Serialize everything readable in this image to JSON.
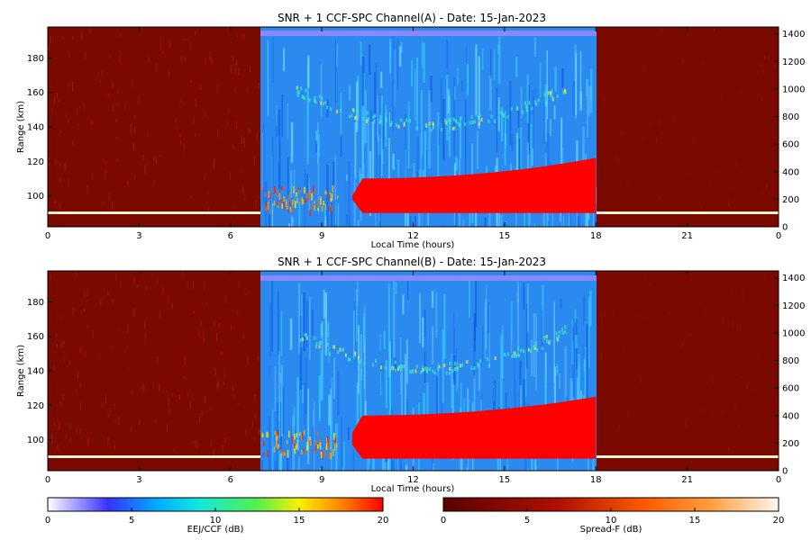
{
  "chart_data": [
    {
      "type": "heatmap",
      "title": "SNR + 1 CCF-SPC Channel(A) - Date: 15-Jan-2023",
      "xlabel": "Local Time (hours)",
      "ylabel": "Range (km)",
      "xlim": [
        0,
        24
      ],
      "ylim": [
        82,
        198
      ],
      "x_ticks": [
        "0",
        "3",
        "6",
        "9",
        "12",
        "15",
        "18",
        "21",
        "0"
      ],
      "y_ticks": [
        "100",
        "120",
        "140",
        "160",
        "180"
      ],
      "y2_ticks": [
        "0",
        "200",
        "400",
        "600",
        "800",
        "1000",
        "1200",
        "1400"
      ],
      "y2lim": [
        0,
        1450
      ],
      "colormap_eej": "EEJ/CCF",
      "colormap_night": "Spread-F",
      "eej_window_hours": [
        7,
        18
      ],
      "regions": [
        {
          "name": "night-spread-f",
          "x_range": [
            0,
            7
          ],
          "colormap": "heat"
        },
        {
          "name": "daytime-eej-ccf",
          "x_range": [
            7,
            18
          ],
          "colormap": "jet"
        },
        {
          "name": "night-spread-f",
          "x_range": [
            18,
            24
          ],
          "colormap": "heat"
        }
      ],
      "features": [
        {
          "type": "strong-echo-layer",
          "x_range": [
            10,
            18
          ],
          "lower_km": 90,
          "upper_km_start": 110,
          "upper_km_end": 122
        },
        {
          "type": "bright-band",
          "range_km": 90
        }
      ]
    },
    {
      "type": "heatmap",
      "title": "SNR + 1 CCF-SPC Channel(B) - Date: 15-Jan-2023",
      "xlabel": "Local Time (hours)",
      "ylabel": "Range (km)",
      "xlim": [
        0,
        24
      ],
      "ylim": [
        82,
        198
      ],
      "x_ticks": [
        "0",
        "3",
        "6",
        "9",
        "12",
        "15",
        "18",
        "21",
        "0"
      ],
      "y_ticks": [
        "100",
        "120",
        "140",
        "160",
        "180"
      ],
      "y2_ticks": [
        "0",
        "200",
        "400",
        "600",
        "800",
        "1000",
        "1200",
        "1400"
      ],
      "y2lim": [
        0,
        1450
      ],
      "eej_window_hours": [
        7,
        18
      ],
      "features": [
        {
          "type": "strong-echo-layer",
          "x_range": [
            10,
            18
          ],
          "lower_km": 89,
          "upper_km_start": 114,
          "upper_km_end": 125
        },
        {
          "type": "bright-band",
          "range_km": 90
        }
      ]
    }
  ],
  "colorbars": [
    {
      "label": "EEJ/CCF (dB)",
      "ticks": [
        "0",
        "5",
        "10",
        "15",
        "20"
      ],
      "range": [
        0,
        20
      ],
      "colormap": "jet"
    },
    {
      "label": "Spread-F (dB)",
      "ticks": [
        "0",
        "5",
        "10",
        "15",
        "20"
      ],
      "range": [
        0,
        20
      ],
      "colormap": "heat"
    }
  ],
  "colors": {
    "night_bg": "#7a0a00",
    "eej_bg": "#2a8af0",
    "strong_echo": "#ff0000",
    "bright_band": "#fff2d0"
  }
}
